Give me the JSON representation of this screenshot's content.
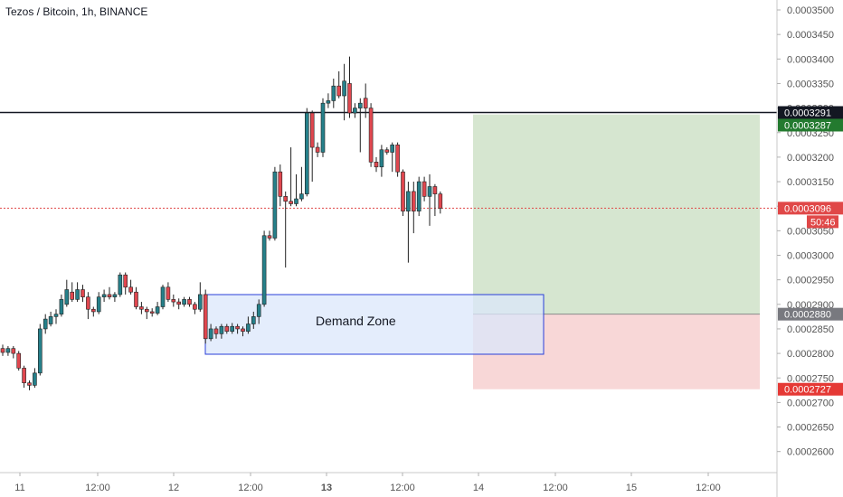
{
  "header": {
    "title": "Tezos / Bitcoin, 1h, BINANCE"
  },
  "colors": {
    "up": "#26808a",
    "down": "#e0474f",
    "demand_fill": "#dbe7fb",
    "demand_border": "#2a3fd8",
    "profit_fill": "#d6e6d0",
    "loss_fill": "#f8d7d7",
    "entry_line": "#8a8a8a",
    "resistance_line": "#131722",
    "last_price": "#e04848",
    "tp_badge": "#237a2f",
    "sl_badge": "#e53935",
    "entry_badge": "#78797f"
  },
  "chart_data": {
    "type": "candlestick",
    "symbol": "Tezos / Bitcoin",
    "interval": "1h",
    "exchange": "BINANCE",
    "x_ticks": [
      "11",
      "12:00",
      "12",
      "12:00",
      "13",
      "12:00",
      "14",
      "12:00",
      "15",
      "12:00"
    ],
    "y_ticks": [
      "0.0003500",
      "0.0003450",
      "0.0003400",
      "0.0003350",
      "0.0003300",
      "0.0003250",
      "0.0003200",
      "0.0003150",
      "0.0003100",
      "0.0003050",
      "0.0003000",
      "0.0002950",
      "0.0002900",
      "0.0002850",
      "0.0002800",
      "0.0002750",
      "0.0002700",
      "0.0002650",
      "0.0002600"
    ],
    "ylim": [
      0.000255,
      0.000351
    ],
    "candles": [
      [
        0.000281,
        0.0002818,
        0.0002795,
        0.0002802
      ],
      [
        0.0002802,
        0.0002815,
        0.0002795,
        0.000281
      ],
      [
        0.000281,
        0.0002815,
        0.000279,
        0.00028
      ],
      [
        0.00028,
        0.0002805,
        0.0002765,
        0.000277
      ],
      [
        0.000277,
        0.0002775,
        0.000273,
        0.000274
      ],
      [
        0.000274,
        0.0002745,
        0.0002725,
        0.0002735
      ],
      [
        0.0002735,
        0.000277,
        0.000273,
        0.000276
      ],
      [
        0.000276,
        0.000286,
        0.0002755,
        0.000285
      ],
      [
        0.000285,
        0.000288,
        0.000284,
        0.000287
      ],
      [
        0.000286,
        0.0002885,
        0.0002855,
        0.0002875
      ],
      [
        0.0002875,
        0.000289,
        0.000286,
        0.000288
      ],
      [
        0.000288,
        0.000292,
        0.0002875,
        0.000291
      ],
      [
        0.00029,
        0.000295,
        0.0002895,
        0.000293
      ],
      [
        0.0002925,
        0.0002945,
        0.0002905,
        0.000291
      ],
      [
        0.000291,
        0.0002945,
        0.0002905,
        0.000293
      ],
      [
        0.000293,
        0.000294,
        0.0002905,
        0.0002915
      ],
      [
        0.0002915,
        0.0002925,
        0.000287,
        0.000289
      ],
      [
        0.000289,
        0.0002895,
        0.0002875,
        0.0002885
      ],
      [
        0.0002885,
        0.0002925,
        0.000288,
        0.0002915
      ],
      [
        0.0002915,
        0.000293,
        0.0002905,
        0.000292
      ],
      [
        0.000292,
        0.0002935,
        0.000291,
        0.0002915
      ],
      [
        0.0002915,
        0.0002925,
        0.0002905,
        0.000292
      ],
      [
        0.000292,
        0.0002965,
        0.0002915,
        0.000296
      ],
      [
        0.000296,
        0.0002965,
        0.000292,
        0.0002935
      ],
      [
        0.0002935,
        0.000295,
        0.000292,
        0.0002925
      ],
      [
        0.0002925,
        0.0002935,
        0.000289,
        0.0002895
      ],
      [
        0.0002895,
        0.0002905,
        0.000288,
        0.000289
      ],
      [
        0.000289,
        0.0002895,
        0.000287,
        0.0002885
      ],
      [
        0.0002885,
        0.0002892,
        0.0002875,
        0.0002882
      ],
      [
        0.0002882,
        0.0002905,
        0.0002878,
        0.0002895
      ],
      [
        0.0002895,
        0.000294,
        0.000289,
        0.0002935
      ],
      [
        0.0002935,
        0.0002945,
        0.0002905,
        0.000291
      ],
      [
        0.000291,
        0.000292,
        0.0002895,
        0.0002905
      ],
      [
        0.0002905,
        0.0002912,
        0.000289,
        0.00029
      ],
      [
        0.00029,
        0.0002915,
        0.0002895,
        0.000291
      ],
      [
        0.000291,
        0.0002915,
        0.0002895,
        0.00029
      ],
      [
        0.00029,
        0.0002905,
        0.000288,
        0.000289
      ],
      [
        0.000289,
        0.0002945,
        0.0002885,
        0.000292
      ],
      [
        0.000292,
        0.000293,
        0.000282,
        0.000283
      ],
      [
        0.000283,
        0.000286,
        0.0002825,
        0.000285
      ],
      [
        0.000285,
        0.0002855,
        0.000283,
        0.000284
      ],
      [
        0.000284,
        0.000286,
        0.000283,
        0.0002855
      ],
      [
        0.0002855,
        0.000286,
        0.000284,
        0.0002845
      ],
      [
        0.0002845,
        0.0002862,
        0.000284,
        0.0002855
      ],
      [
        0.0002855,
        0.000286,
        0.000284,
        0.000285
      ],
      [
        0.000285,
        0.0002855,
        0.0002835,
        0.0002845
      ],
      [
        0.0002845,
        0.0002875,
        0.000284,
        0.000286
      ],
      [
        0.000286,
        0.0002885,
        0.000285,
        0.0002875
      ],
      [
        0.0002875,
        0.000291,
        0.000286,
        0.00029
      ],
      [
        0.00029,
        0.000305,
        0.0002895,
        0.000304
      ],
      [
        0.000304,
        0.000305,
        0.000303,
        0.0003035
      ],
      [
        0.0003035,
        0.000318,
        0.000303,
        0.000317
      ],
      [
        0.000317,
        0.0003185,
        0.00031,
        0.000312
      ],
      [
        0.000312,
        0.000313,
        0.0002975,
        0.000311
      ],
      [
        0.000311,
        0.000322,
        0.00031,
        0.0003105
      ],
      [
        0.0003105,
        0.0003165,
        0.00031,
        0.0003115
      ],
      [
        0.0003115,
        0.000318,
        0.000311,
        0.0003125
      ],
      [
        0.0003125,
        0.00033,
        0.000312,
        0.000329
      ],
      [
        0.000329,
        0.0003295,
        0.000315,
        0.000322
      ],
      [
        0.000322,
        0.000323,
        0.00032,
        0.000321
      ],
      [
        0.000321,
        0.000332,
        0.00032,
        0.000331
      ],
      [
        0.000331,
        0.000333,
        0.00033,
        0.0003315
      ],
      [
        0.0003315,
        0.000336,
        0.00033,
        0.0003345
      ],
      [
        0.0003345,
        0.0003375,
        0.000332,
        0.0003325
      ],
      [
        0.0003325,
        0.000339,
        0.0003275,
        0.0003355
      ],
      [
        0.000335,
        0.0003405,
        0.000328,
        0.000329
      ],
      [
        0.000329,
        0.000331,
        0.000328,
        0.00033
      ],
      [
        0.00033,
        0.000332,
        0.000321,
        0.000331
      ],
      [
        0.000332,
        0.000335,
        0.000328,
        0.00033
      ],
      [
        0.00033,
        0.000331,
        0.000318,
        0.000319
      ],
      [
        0.000319,
        0.00032,
        0.000317,
        0.000318
      ],
      [
        0.000318,
        0.0003225,
        0.000316,
        0.0003215
      ],
      [
        0.0003215,
        0.000322,
        0.0003205,
        0.000321
      ],
      [
        0.000321,
        0.000323,
        0.000317,
        0.0003225
      ],
      [
        0.0003225,
        0.000323,
        0.000316,
        0.000317
      ],
      [
        0.000317,
        0.0003175,
        0.000308,
        0.000309
      ],
      [
        0.000309,
        0.000315,
        0.0002985,
        0.000313
      ],
      [
        0.000313,
        0.000315,
        0.0003045,
        0.000309
      ],
      [
        0.000309,
        0.000316,
        0.000308,
        0.000315
      ],
      [
        0.000315,
        0.000316,
        0.000311,
        0.000312
      ],
      [
        0.000312,
        0.0003165,
        0.000306,
        0.000314
      ],
      [
        0.000314,
        0.0003145,
        0.000308,
        0.0003125
      ],
      [
        0.0003125,
        0.000313,
        0.0003085,
        0.0003096
      ]
    ],
    "annotations": {
      "demand_zone_label": "Demand Zone",
      "resistance_price": 0.0003291,
      "position": {
        "take_profit": 0.0003287,
        "entry": 0.000288,
        "stop_loss": 0.0002727
      }
    },
    "last_price": 0.0003096,
    "price_labels": {
      "resistance": "0.0003291",
      "take_profit": "0.0003287",
      "last_price": "0.0003096",
      "countdown": "50:46",
      "entry": "0.0002880",
      "stop_loss": "0.0002727"
    }
  }
}
